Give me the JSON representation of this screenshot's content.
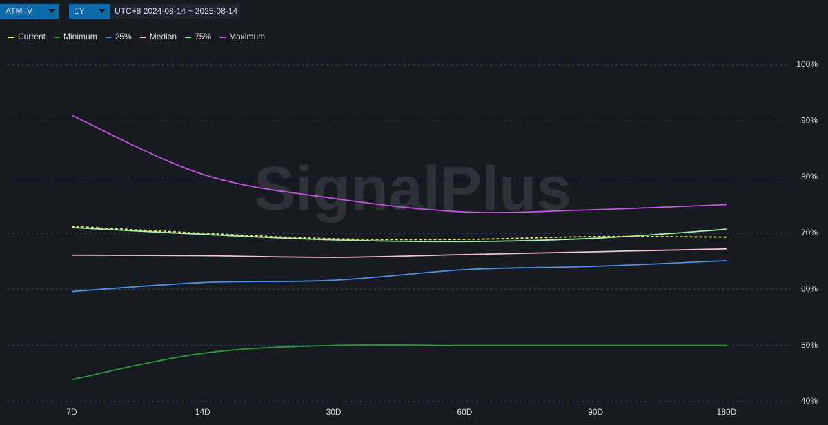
{
  "chart_data": {
    "type": "line",
    "selectors": [
      "ATM IV",
      "1Y"
    ],
    "date_range": "UTC+8 2024-08-14 ~ 2025-08-14",
    "watermark": "SignalPlus",
    "categories": [
      "7D",
      "14D",
      "30D",
      "60D",
      "90D",
      "180D"
    ],
    "series": [
      {
        "name": "Current",
        "color": "#e6ea5c",
        "dashed": true,
        "values": [
          71.2,
          70.0,
          69.0,
          68.9,
          69.4,
          69.3
        ]
      },
      {
        "name": "Minimum",
        "color": "#2f9a3c",
        "values": [
          43.9,
          48.6,
          50.0,
          50.0,
          50.0,
          50.0
        ]
      },
      {
        "name": "25%",
        "color": "#4f8ee6",
        "values": [
          59.6,
          61.2,
          61.6,
          63.5,
          64.1,
          65.1
        ]
      },
      {
        "name": "Median",
        "color": "#f2bcd8",
        "values": [
          66.1,
          66.0,
          65.7,
          66.2,
          66.7,
          67.2
        ]
      },
      {
        "name": "75%",
        "color": "#a6eeb0",
        "values": [
          71.0,
          69.8,
          68.8,
          68.5,
          69.1,
          70.7
        ]
      },
      {
        "name": "Maximum",
        "color": "#c452e2",
        "values": [
          91.0,
          80.5,
          76.2,
          73.8,
          74.2,
          75.1
        ]
      }
    ],
    "ylim": [
      40,
      100
    ],
    "yticks": [
      {
        "value": 40,
        "label": "40%"
      },
      {
        "value": 50,
        "label": "50%"
      },
      {
        "value": 60,
        "label": "60%"
      },
      {
        "value": 70,
        "label": "70%"
      },
      {
        "value": 80,
        "label": "80%"
      },
      {
        "value": 90,
        "label": "90%"
      },
      {
        "value": 100,
        "label": "100%"
      }
    ],
    "grid": true
  }
}
